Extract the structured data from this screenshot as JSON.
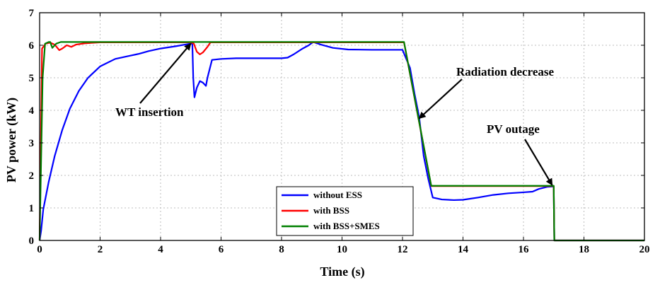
{
  "chart_data": {
    "type": "line",
    "title": "",
    "xlabel": "Time (s)",
    "ylabel": "PV power (kW)",
    "xlim": [
      0,
      20
    ],
    "ylim": [
      0,
      7
    ],
    "xticks": [
      0,
      2,
      4,
      6,
      8,
      10,
      12,
      14,
      16,
      18,
      20
    ],
    "yticks": [
      0,
      1,
      2,
      3,
      4,
      5,
      6,
      7
    ],
    "grid": true,
    "legend_position": "bottom-center",
    "series": [
      {
        "name": "without ESS",
        "color": "#0000ff",
        "points": [
          [
            0,
            0
          ],
          [
            0.05,
            0.3
          ],
          [
            0.12,
            0.95
          ],
          [
            0.3,
            1.8
          ],
          [
            0.5,
            2.6
          ],
          [
            0.75,
            3.4
          ],
          [
            1.0,
            4.05
          ],
          [
            1.3,
            4.6
          ],
          [
            1.6,
            5.0
          ],
          [
            2.0,
            5.35
          ],
          [
            2.5,
            5.58
          ],
          [
            3.0,
            5.68
          ],
          [
            3.2,
            5.72
          ],
          [
            3.3,
            5.74
          ],
          [
            3.6,
            5.82
          ],
          [
            4.0,
            5.9
          ],
          [
            4.5,
            5.97
          ],
          [
            5.0,
            6.05
          ],
          [
            5.05,
            6.05
          ],
          [
            5.08,
            5.0
          ],
          [
            5.12,
            4.4
          ],
          [
            5.2,
            4.7
          ],
          [
            5.3,
            4.9
          ],
          [
            5.4,
            4.85
          ],
          [
            5.5,
            4.75
          ],
          [
            5.55,
            5.0
          ],
          [
            5.7,
            5.55
          ],
          [
            6.0,
            5.58
          ],
          [
            6.5,
            5.6
          ],
          [
            7.0,
            5.6
          ],
          [
            7.5,
            5.6
          ],
          [
            8.0,
            5.6
          ],
          [
            8.2,
            5.62
          ],
          [
            8.4,
            5.72
          ],
          [
            8.7,
            5.9
          ],
          [
            8.9,
            6.0
          ],
          [
            9.05,
            6.1
          ],
          [
            9.3,
            6.02
          ],
          [
            9.7,
            5.92
          ],
          [
            10.2,
            5.87
          ],
          [
            11.0,
            5.86
          ],
          [
            12.0,
            5.86
          ],
          [
            12.25,
            5.3
          ],
          [
            12.4,
            4.5
          ],
          [
            12.55,
            3.8
          ],
          [
            12.7,
            2.6
          ],
          [
            12.85,
            1.9
          ],
          [
            13.0,
            1.32
          ],
          [
            13.3,
            1.26
          ],
          [
            13.7,
            1.24
          ],
          [
            14.0,
            1.25
          ],
          [
            14.5,
            1.32
          ],
          [
            15.0,
            1.4
          ],
          [
            15.5,
            1.45
          ],
          [
            16.0,
            1.48
          ],
          [
            16.3,
            1.5
          ],
          [
            16.5,
            1.58
          ],
          [
            16.8,
            1.65
          ],
          [
            17.0,
            1.66
          ],
          [
            17.02,
            0
          ],
          [
            20,
            0
          ]
        ]
      },
      {
        "name": "with BSS",
        "color": "#ff0000",
        "points": [
          [
            0,
            0
          ],
          [
            0.08,
            5.9
          ],
          [
            0.2,
            6.05
          ],
          [
            0.35,
            6.08
          ],
          [
            0.5,
            6.02
          ],
          [
            0.65,
            5.85
          ],
          [
            0.75,
            5.9
          ],
          [
            0.9,
            6.0
          ],
          [
            1.05,
            5.95
          ],
          [
            1.2,
            6.02
          ],
          [
            1.5,
            6.06
          ],
          [
            2.0,
            6.09
          ],
          [
            5.0,
            6.09
          ],
          [
            5.1,
            6.05
          ],
          [
            5.2,
            5.8
          ],
          [
            5.3,
            5.72
          ],
          [
            5.4,
            5.78
          ],
          [
            5.55,
            5.95
          ],
          [
            5.65,
            6.09
          ],
          [
            12.05,
            6.09
          ],
          [
            12.95,
            1.67
          ],
          [
            17.0,
            1.67
          ],
          [
            17.02,
            0
          ],
          [
            20,
            0
          ]
        ]
      },
      {
        "name": "with BSS+SMES",
        "color": "#008000",
        "points": [
          [
            0,
            0
          ],
          [
            0.1,
            5.0
          ],
          [
            0.18,
            6.05
          ],
          [
            0.3,
            6.1
          ],
          [
            0.35,
            6.1
          ],
          [
            0.42,
            5.92
          ],
          [
            0.55,
            6.05
          ],
          [
            0.7,
            6.1
          ],
          [
            12.05,
            6.1
          ],
          [
            12.95,
            1.68
          ],
          [
            17.0,
            1.68
          ],
          [
            17.02,
            0
          ],
          [
            20,
            0
          ]
        ]
      }
    ],
    "annotations": [
      {
        "text": "WT insertion",
        "arrow_to": [
          5.0,
          6.05
        ]
      },
      {
        "text": "Radiation decrease",
        "arrow_to": [
          12.55,
          3.75
        ]
      },
      {
        "text": "PV outage",
        "arrow_to": [
          16.95,
          1.7
        ]
      }
    ]
  }
}
